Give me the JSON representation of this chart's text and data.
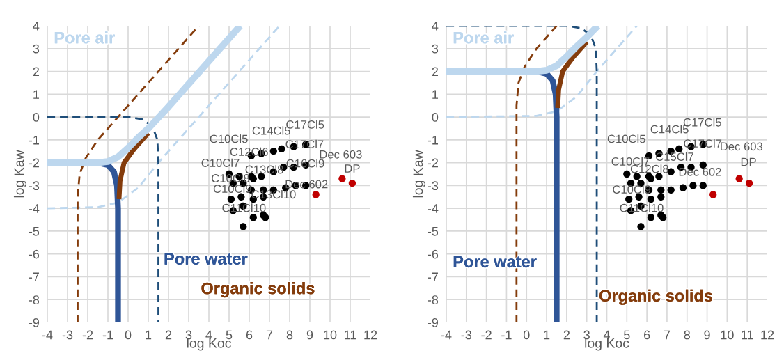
{
  "chart_data": [
    {
      "type": "scatter",
      "xlabel": "log Koc",
      "ylabel": "log Kaw",
      "xlim": [
        -4,
        12
      ],
      "ylim": [
        -9,
        4
      ],
      "xticks": [
        -4,
        -3,
        -2,
        -1,
        0,
        1,
        2,
        3,
        4,
        5,
        6,
        7,
        8,
        9,
        10,
        11,
        12
      ],
      "yticks": [
        -9,
        -8,
        -7,
        -6,
        -5,
        -4,
        -3,
        -2,
        -1,
        0,
        1,
        2,
        3,
        4
      ],
      "grid": true,
      "legend": false,
      "series": [
        {
          "type": "line",
          "line_style": "dashed",
          "color": "#bdd7ee",
          "x": [
            -4,
            -1.5,
            -0.5,
            0.5,
            1.5,
            2.5,
            4,
            7.5
          ],
          "values": [
            -4,
            -3.95,
            -3.75,
            -3.1,
            -2,
            -1,
            0.5,
            4
          ]
        },
        {
          "type": "line",
          "line_style": "dashed",
          "color": "#843c0c",
          "x": [
            -2.5,
            -2.5,
            -2.4,
            -2.1,
            -1.5,
            -0.5,
            3.5
          ],
          "values": [
            -9,
            -3.5,
            -2.5,
            -1.8,
            -1,
            0,
            4
          ]
        },
        {
          "type": "line",
          "line_style": "dashed",
          "color": "#1f4e79",
          "x": [
            -4,
            0,
            0.7,
            1.2,
            1.45,
            1.5,
            1.5
          ],
          "values": [
            0,
            0,
            -0.1,
            -0.4,
            -1,
            -2,
            -9
          ]
        },
        {
          "type": "line",
          "line_style": "solid",
          "name": "Pore water",
          "color": "#2f5597",
          "x": [
            -1.5,
            -1,
            -0.7,
            -0.55,
            -0.5,
            -0.5
          ],
          "values": [
            -2,
            -2.1,
            -2.4,
            -3,
            -4,
            -9
          ]
        },
        {
          "type": "line",
          "line_style": "solid",
          "name": "Organic solids",
          "color": "#843c0c",
          "x": [
            -0.45,
            -0.4,
            -0.2,
            0.3,
            1
          ],
          "values": [
            -3.6,
            -2.8,
            -2,
            -1.4,
            -0.7
          ]
        },
        {
          "type": "line",
          "line_style": "solid",
          "name": "Pore air",
          "color": "#bdd7ee",
          "x": [
            -4,
            -1.5,
            -1,
            -0.5,
            0,
            0.5,
            1,
            2,
            5.55
          ],
          "values": [
            -2,
            -2,
            -1.95,
            -1.75,
            -1.35,
            -0.9,
            -0.5,
            0.45,
            4
          ]
        },
        {
          "marker": "circle",
          "color": "#000000",
          "x": [
            6.1,
            6.6,
            7.2,
            7.6,
            8.2,
            8.8,
            5.0,
            5.5,
            6.1,
            6.2,
            6.6,
            7.2,
            7.7,
            8.2,
            8.8,
            5.2,
            5.7,
            6.1,
            6.7,
            7.2,
            7.8,
            8.3,
            8.8,
            5.1,
            5.6,
            6.2,
            6.7,
            5.7,
            5.2,
            6.2,
            6.7,
            6.8,
            5.7
          ],
          "values": [
            -1.7,
            -1.6,
            -1.5,
            -1.4,
            -1.3,
            -1.2,
            -2.5,
            -2.6,
            -2.6,
            -2.7,
            -2.6,
            -2.4,
            -2.2,
            -2.2,
            -2.1,
            -2.9,
            -2.9,
            -3.2,
            -3.2,
            -3.2,
            -3.1,
            -3.0,
            -3.0,
            -3.6,
            -3.5,
            -3.6,
            -3.5,
            -3.9,
            -4.1,
            -4.4,
            -4.3,
            -4.4,
            -4.8
          ]
        },
        {
          "marker": "circle",
          "color": "#c00000",
          "x": [
            9.3,
            10.6,
            11.1
          ],
          "values": [
            -3.4,
            -2.7,
            -2.9
          ]
        }
      ],
      "annotations": [
        {
          "text": "C17Cl5",
          "x": 8.8,
          "y": -1.2
        },
        {
          "text": "C14Cl5",
          "x": 7.2,
          "y": -1.5
        },
        {
          "text": "C10Cl5",
          "x": 6.1,
          "y": -1.7
        },
        {
          "text": "C17Cl7",
          "x": 8.2,
          "y": -1.3
        },
        {
          "text": "Dec 603",
          "x": 10.6,
          "y": -2.7
        },
        {
          "text": "DP",
          "x": 11.1,
          "y": -2.9
        },
        {
          "text": "C12Cl6",
          "x": 6.6,
          "y": -1.6
        },
        {
          "text": "C10Cl7",
          "x": 5.0,
          "y": -2.5
        },
        {
          "text": "C13Cl8",
          "x": 6.6,
          "y": -2.6
        },
        {
          "text": "C16Cl9",
          "x": 8.2,
          "y": -2.2
        },
        {
          "text": "C10Cl8",
          "x": 5.5,
          "y": -2.6
        },
        {
          "text": "Dec 602",
          "x": 9.3,
          "y": -3.4
        },
        {
          "text": "C10Cl9",
          "x": 5.2,
          "y": -2.9
        },
        {
          "text": "C13Cl10",
          "x": 6.7,
          "y": -3.5
        },
        {
          "text": "C11Cl10",
          "x": 5.7,
          "y": -3.9
        }
      ]
    },
    {
      "type": "scatter",
      "xlabel": "log Koc",
      "ylabel": "log Kaw",
      "xlim": [
        -4,
        12
      ],
      "ylim": [
        -9,
        4
      ],
      "xticks": [
        -4,
        -3,
        -2,
        -1,
        0,
        1,
        2,
        3,
        4,
        5,
        6,
        7,
        8,
        9,
        10,
        11,
        12
      ],
      "yticks": [
        -9,
        -8,
        -7,
        -6,
        -5,
        -4,
        -3,
        -2,
        -1,
        0,
        1,
        2,
        3,
        4
      ],
      "grid": true,
      "legend": false,
      "series": [
        {
          "type": "line",
          "line_style": "dashed",
          "color": "#bdd7ee",
          "x": [
            -4,
            0.5,
            1.5,
            2.5,
            3.5,
            4.5,
            5.5
          ],
          "values": [
            0,
            0.05,
            0.25,
            0.9,
            2,
            3,
            4
          ]
        },
        {
          "type": "line",
          "line_style": "dashed",
          "color": "#843c0c",
          "x": [
            -0.5,
            -0.5,
            -0.4,
            -0.1,
            0.5,
            1.5
          ],
          "values": [
            -9,
            0.5,
            1.5,
            2.2,
            3,
            4
          ]
        },
        {
          "type": "line",
          "line_style": "dashed",
          "color": "#1f4e79",
          "x": [
            -4,
            2,
            2.7,
            3.2,
            3.45,
            3.5,
            3.5
          ],
          "values": [
            4,
            4,
            3.9,
            3.6,
            3,
            2,
            -9
          ]
        },
        {
          "type": "line",
          "line_style": "solid",
          "name": "Pore water",
          "color": "#2f5597",
          "x": [
            0.5,
            1,
            1.3,
            1.45,
            1.5,
            1.5
          ],
          "values": [
            2,
            1.9,
            1.6,
            1,
            0,
            -9
          ]
        },
        {
          "type": "line",
          "line_style": "solid",
          "name": "Organic solids",
          "color": "#843c0c",
          "x": [
            1.55,
            1.6,
            1.8,
            2.3,
            3
          ],
          "values": [
            0.4,
            1.2,
            2,
            2.6,
            3.3
          ]
        },
        {
          "type": "line",
          "line_style": "solid",
          "name": "Pore air",
          "color": "#bdd7ee",
          "x": [
            -4,
            0.5,
            1,
            1.5,
            2,
            2.5,
            3,
            3.55
          ],
          "values": [
            2,
            2,
            2.05,
            2.25,
            2.65,
            3.1,
            3.5,
            4
          ]
        },
        {
          "marker": "circle",
          "color": "#000000",
          "x": [
            6.1,
            6.6,
            7.2,
            7.6,
            8.2,
            8.8,
            5.0,
            5.5,
            6.1,
            6.2,
            6.6,
            7.2,
            7.7,
            8.2,
            8.8,
            5.2,
            5.7,
            6.1,
            6.7,
            7.2,
            7.8,
            8.3,
            8.8,
            5.1,
            5.6,
            6.2,
            6.7,
            5.7,
            5.2,
            6.2,
            6.7,
            6.8,
            5.7
          ],
          "values": [
            -1.7,
            -1.6,
            -1.5,
            -1.4,
            -1.3,
            -1.2,
            -2.5,
            -2.6,
            -2.6,
            -2.7,
            -2.6,
            -2.4,
            -2.2,
            -2.2,
            -2.1,
            -2.9,
            -2.9,
            -3.2,
            -3.2,
            -3.2,
            -3.1,
            -3.0,
            -3.0,
            -3.6,
            -3.5,
            -3.6,
            -3.5,
            -3.9,
            -4.1,
            -4.4,
            -4.3,
            -4.4,
            -4.8
          ]
        },
        {
          "marker": "circle",
          "color": "#c00000",
          "x": [
            9.3,
            10.6,
            11.1
          ],
          "values": [
            -3.4,
            -2.7,
            -2.9
          ]
        }
      ],
      "annotations": [
        {
          "text": "C17Cl5",
          "x": 8.8,
          "y": -1.2
        },
        {
          "text": "C14Cl5",
          "x": 7.2,
          "y": -1.5
        },
        {
          "text": "C10Cl5",
          "x": 6.1,
          "y": -1.7
        },
        {
          "text": "C17Cl7",
          "x": 8.2,
          "y": -1.3
        },
        {
          "text": "C15Cl7",
          "x": 7.6,
          "y": -1.4
        },
        {
          "text": "Dec 603",
          "x": 10.6,
          "y": -2.7
        },
        {
          "text": "DP",
          "x": 11.1,
          "y": -2.9
        },
        {
          "text": "C10Cl7",
          "x": 5.0,
          "y": -2.5
        },
        {
          "text": "C12Cl8",
          "x": 6.2,
          "y": -2.7
        },
        {
          "text": "Dec 602",
          "x": 9.3,
          "y": -3.4
        },
        {
          "text": "C10Cl9",
          "x": 5.2,
          "y": -2.9
        },
        {
          "text": "C11Cl10",
          "x": 5.7,
          "y": -3.9
        }
      ]
    }
  ]
}
